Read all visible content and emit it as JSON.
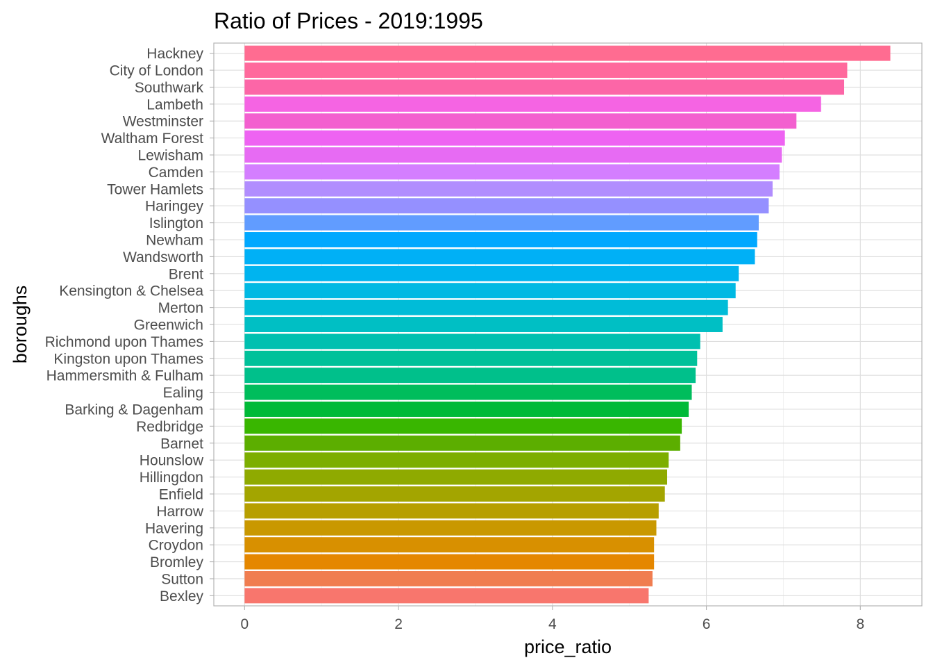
{
  "chart_data": {
    "type": "bar",
    "orientation": "horizontal",
    "title": "Ratio of Prices - 2019:1995",
    "xlabel": "price_ratio",
    "ylabel": "boroughs",
    "xlim": [
      -0.4,
      8.8
    ],
    "xticks": [
      0,
      2,
      4,
      6,
      8
    ],
    "grid": true,
    "legend": "none",
    "categories": [
      "Hackney",
      "City of London",
      "Southwark",
      "Lambeth",
      "Westminster",
      "Waltham Forest",
      "Lewisham",
      "Camden",
      "Tower Hamlets",
      "Haringey",
      "Islington",
      "Newham",
      "Wandsworth",
      "Brent",
      "Kensington & Chelsea",
      "Merton",
      "Greenwich",
      "Richmond upon Thames",
      "Kingston upon Thames",
      "Hammersmith & Fulham",
      "Ealing",
      "Barking & Dagenham",
      "Redbridge",
      "Barnet",
      "Hounslow",
      "Hillingdon",
      "Enfield",
      "Harrow",
      "Havering",
      "Croydon",
      "Bromley",
      "Sutton",
      "Bexley"
    ],
    "values": [
      8.39,
      7.83,
      7.79,
      7.49,
      7.17,
      7.02,
      6.98,
      6.95,
      6.86,
      6.81,
      6.68,
      6.66,
      6.63,
      6.42,
      6.38,
      6.28,
      6.21,
      5.92,
      5.88,
      5.86,
      5.81,
      5.77,
      5.68,
      5.66,
      5.51,
      5.49,
      5.46,
      5.38,
      5.35,
      5.32,
      5.32,
      5.3,
      5.25
    ],
    "colors": [
      "#FF6C91",
      "#FF699C",
      "#FC66A7",
      "#F564E3",
      "#F35FCF",
      "#EE63F2",
      "#E76BF3",
      "#D47EFF",
      "#B18DFE",
      "#9590FF",
      "#619CFF",
      "#00A8FF",
      "#00B0F6",
      "#00B4EF",
      "#00B9E3",
      "#00BCD8",
      "#00BFC4",
      "#00C0B0",
      "#00C19A",
      "#00C08B",
      "#00BD5C",
      "#00BA38",
      "#39B600",
      "#5CAE00",
      "#7CAE00",
      "#8FAA00",
      "#A3A500",
      "#B79F00",
      "#C99800",
      "#D89000",
      "#E58700",
      "#F07D50",
      "#F8766D"
    ]
  }
}
